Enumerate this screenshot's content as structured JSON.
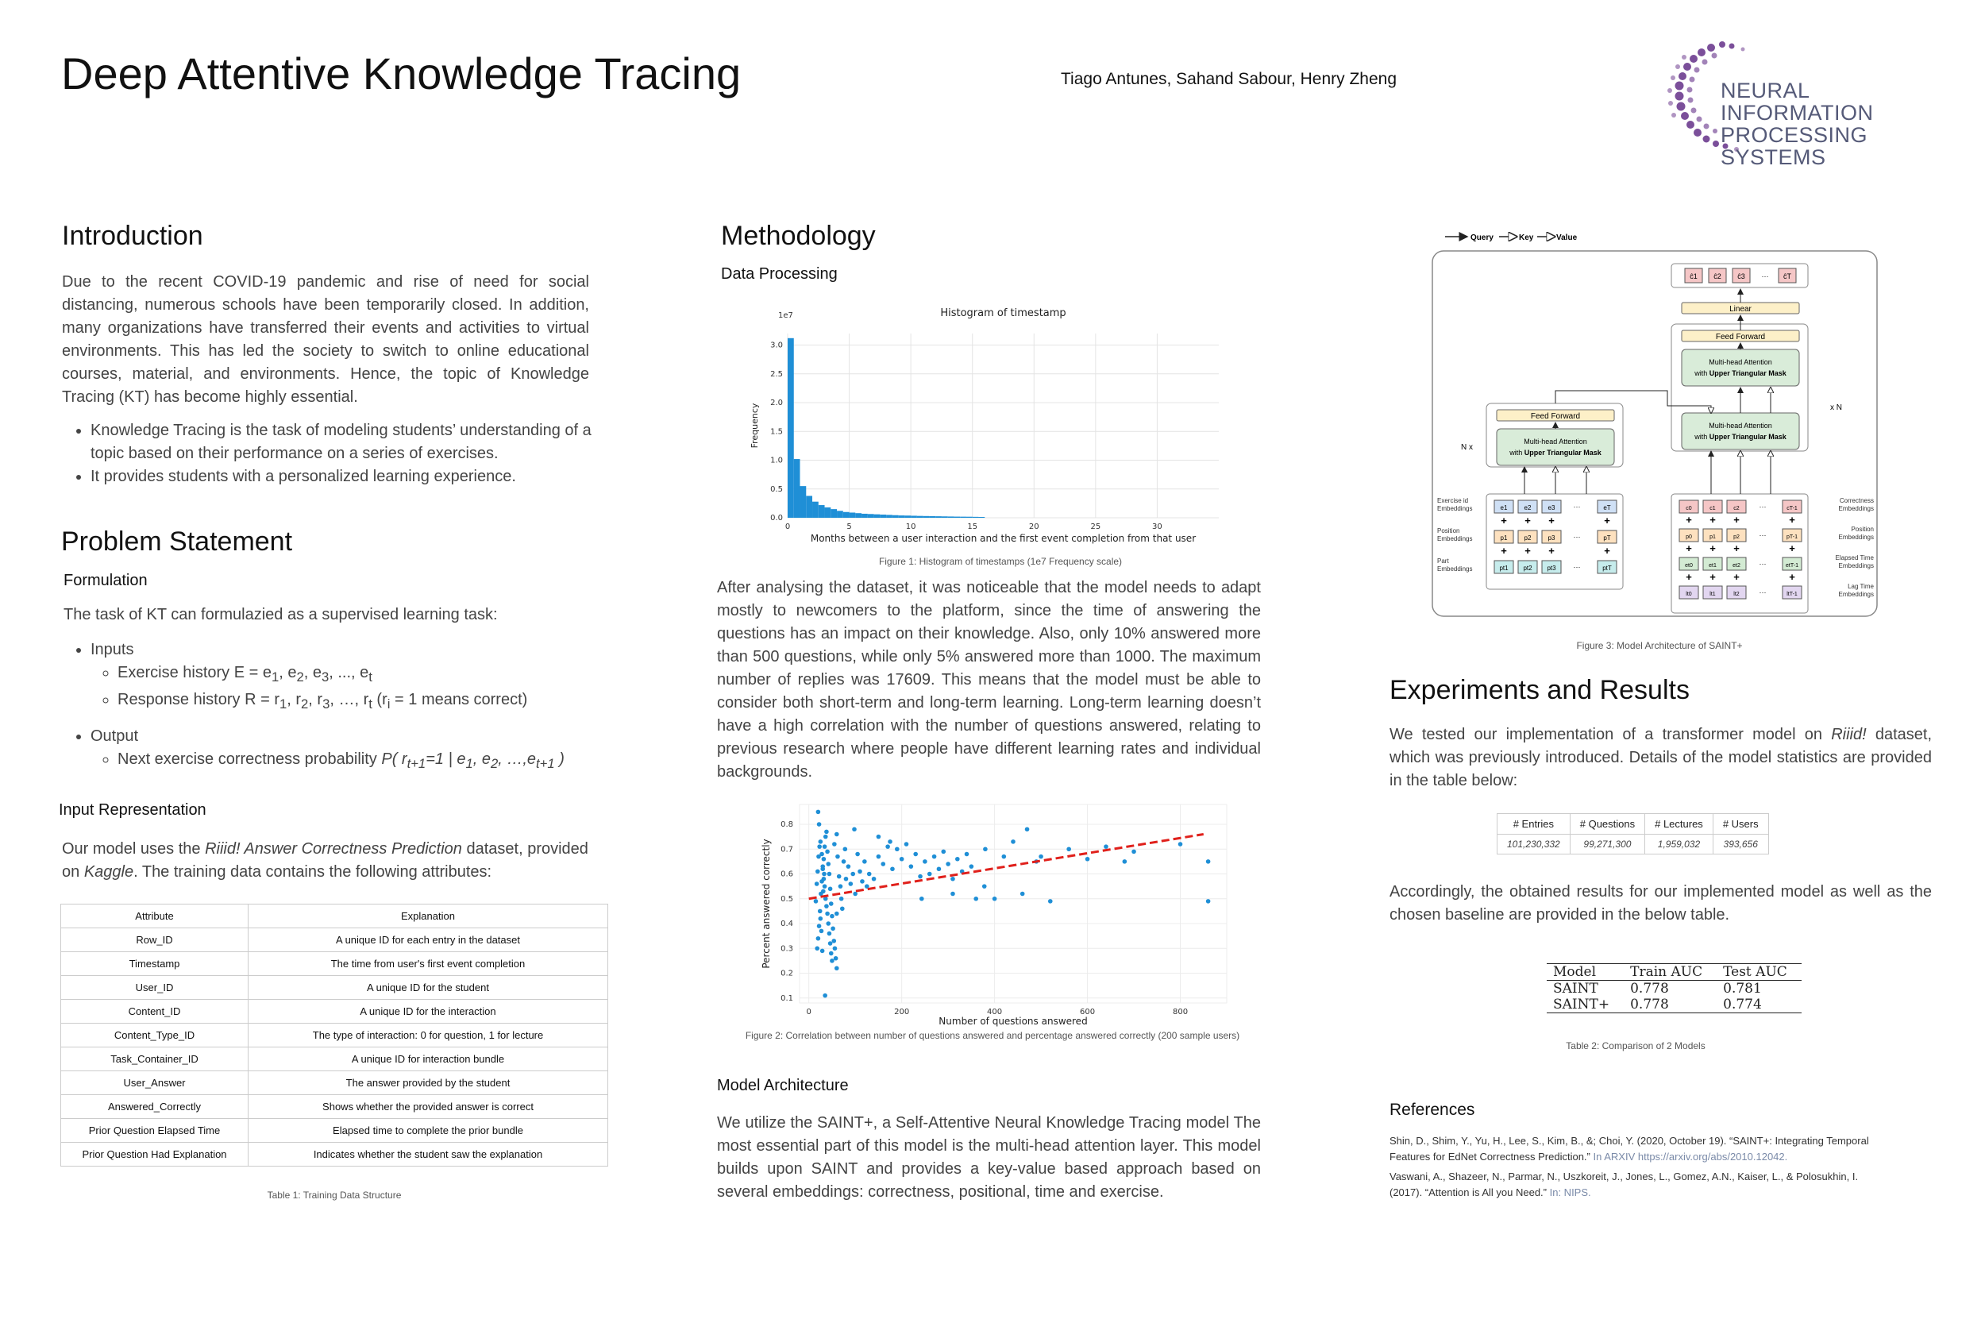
{
  "header": {
    "title": "Deep Attentive Knowledge Tracing",
    "authors": "Tiago Antunes, Sahand Sabour, Henry Zheng",
    "logo_line1": "NEURAL INFORMATION",
    "logo_line2": "PROCESSING SYSTEMS"
  },
  "intro": {
    "heading": "Introduction",
    "paragraph": "Due to the recent COVID-19 pandemic and rise of need for social distancing, numerous schools have been temporarily closed. In addition, many organizations have transferred their events and activities to virtual environments. This has led the society to switch to online educational courses, material, and environments. Hence, the topic of Knowledge Tracing (KT) has become highly essential.",
    "bullets": [
      "Knowledge Tracing is the task of modeling students’ understanding of a topic based on their performance on a series of exercises.",
      "It provides students with a personalized learning experience."
    ]
  },
  "problem": {
    "heading": "Problem Statement",
    "sub_formulation": "Formulation",
    "formulation_text": "The task of KT can formulazied as a supervised learning task:",
    "inputs_label": "Inputs",
    "exercise_history": "Exercise history E = e",
    "response_history": "Response history R = r",
    "response_note": " = 1 means correct)",
    "output_label": "Output",
    "next_prob": "Next exercise correctness probability",
    "sub_input_rep": "Input Representation",
    "input_rep_a": "Our model uses the ",
    "input_rep_dataset": "Riiid! Answer Correctness Prediction",
    "input_rep_b": " dataset, provided on ",
    "input_rep_kaggle": "Kaggle",
    "input_rep_c": ". The training data contains the following attributes:",
    "table_header": [
      "Attribute",
      "Explanation"
    ],
    "table_rows": [
      [
        "Row_ID",
        "A unique ID for each entry in the dataset"
      ],
      [
        "Timestamp",
        "The time from user's first event completion"
      ],
      [
        "User_ID",
        "A unique ID for the student"
      ],
      [
        "Content_ID",
        "A unique ID for the interaction"
      ],
      [
        "Content_Type_ID",
        "The type of interaction: 0 for question, 1 for lecture"
      ],
      [
        "Task_Container_ID",
        "A unique ID for interaction bundle"
      ],
      [
        "User_Answer",
        "The answer provided by the student"
      ],
      [
        "Answered_Correctly",
        "Shows whether the provided answer is correct"
      ],
      [
        "Prior Question Elapsed Time",
        "Elapsed time to complete the prior bundle"
      ],
      [
        "Prior Question Had Explanation",
        "Indicates  whether the student saw the explanation"
      ]
    ],
    "table_caption": "Table 1: Training Data Structure"
  },
  "method": {
    "heading": "Methodology",
    "sub_data": "Data Processing",
    "fig1_caption": "Figure 1: Histogram of timestamps (1e7 Frequency scale)",
    "paragraph": "After analysing the dataset, it was noticeable that the model needs to adapt mostly to newcomers to the platform, since the time of answering the questions has an impact on their knowledge. Also, only 10% answered more than 500 questions, while only 5% answered more than 1000. The maximum number of replies was 17609. This means that the model must be able to consider both short-term and long-term learning. Long-term learning doesn’t have a high correlation with the number of questions answered, relating to previous research where people have different learning rates and individual backgrounds.",
    "fig2_caption": "Figure 2:  Correlation between number of questions answered and percentage answered correctly (200 sample users)",
    "sub_arch": "Model Architecture",
    "arch_text": "We utilize the SAINT+, a Self-Attentive Neural Knowledge Tracing model The most essential part of this model is the multi-head attention layer. This model builds upon SAINT and provides a key-value based approach based on several embeddings: correctness, positional, time and exercise."
  },
  "chart_data": [
    {
      "type": "bar",
      "title": "Histogram of timestamp",
      "xlabel": "Months between a user interaction and the first event completion from that user",
      "ylabel": "Frequency",
      "y_scale_label": "1e7",
      "xlim": [
        0,
        35
      ],
      "ylim": [
        0,
        3.2
      ],
      "xticks": [
        0,
        5,
        10,
        15,
        20,
        25,
        30
      ],
      "yticks": [
        0.0,
        0.5,
        1.0,
        1.5,
        2.0,
        2.5,
        3.0
      ],
      "bin_width": 0.5,
      "values": [
        3.12,
        1.02,
        0.55,
        0.38,
        0.28,
        0.22,
        0.18,
        0.15,
        0.12,
        0.1,
        0.09,
        0.08,
        0.07,
        0.065,
        0.06,
        0.055,
        0.05,
        0.045,
        0.04,
        0.038,
        0.035,
        0.032,
        0.03,
        0.028,
        0.026,
        0.024,
        0.022,
        0.02,
        0.019,
        0.018,
        0.016,
        0.014
      ]
    },
    {
      "type": "scatter",
      "xlabel": "Number of questions answered",
      "ylabel": "Percent answered correctly",
      "xlim": [
        -20,
        900
      ],
      "ylim": [
        0.08,
        0.88
      ],
      "xticks": [
        0,
        200,
        400,
        600,
        800
      ],
      "yticks": [
        0.1,
        0.2,
        0.3,
        0.4,
        0.5,
        0.6,
        0.7,
        0.8
      ],
      "trend": {
        "x": [
          0,
          850
        ],
        "y": [
          0.5,
          0.76
        ],
        "color": "#e0201b"
      },
      "points": [
        [
          20,
          0.85
        ],
        [
          22,
          0.8
        ],
        [
          25,
          0.73
        ],
        [
          28,
          0.68
        ],
        [
          30,
          0.62
        ],
        [
          32,
          0.58
        ],
        [
          34,
          0.55
        ],
        [
          36,
          0.5
        ],
        [
          38,
          0.47
        ],
        [
          40,
          0.44
        ],
        [
          42,
          0.4
        ],
        [
          44,
          0.36
        ],
        [
          46,
          0.32
        ],
        [
          48,
          0.28
        ],
        [
          50,
          0.25
        ],
        [
          35,
          0.11
        ],
        [
          18,
          0.3
        ],
        [
          20,
          0.34
        ],
        [
          22,
          0.39
        ],
        [
          24,
          0.45
        ],
        [
          26,
          0.52
        ],
        [
          28,
          0.57
        ],
        [
          30,
          0.63
        ],
        [
          32,
          0.66
        ],
        [
          34,
          0.71
        ],
        [
          36,
          0.75
        ],
        [
          38,
          0.77
        ],
        [
          40,
          0.69
        ],
        [
          42,
          0.64
        ],
        [
          44,
          0.6
        ],
        [
          46,
          0.54
        ],
        [
          48,
          0.48
        ],
        [
          50,
          0.43
        ],
        [
          52,
          0.38
        ],
        [
          54,
          0.33
        ],
        [
          56,
          0.3
        ],
        [
          58,
          0.26
        ],
        [
          60,
          0.22
        ],
        [
          15,
          0.49
        ],
        [
          17,
          0.56
        ],
        [
          19,
          0.61
        ],
        [
          21,
          0.67
        ],
        [
          23,
          0.71
        ],
        [
          25,
          0.42
        ],
        [
          27,
          0.37
        ],
        [
          29,
          0.29
        ],
        [
          31,
          0.53
        ],
        [
          33,
          0.6
        ],
        [
          55,
          0.72
        ],
        [
          60,
          0.76
        ],
        [
          62,
          0.67
        ],
        [
          65,
          0.59
        ],
        [
          68,
          0.55
        ],
        [
          70,
          0.5
        ],
        [
          72,
          0.46
        ],
        [
          75,
          0.65
        ],
        [
          78,
          0.7
        ],
        [
          80,
          0.58
        ],
        [
          85,
          0.63
        ],
        [
          90,
          0.56
        ],
        [
          95,
          0.6
        ],
        [
          100,
          0.52
        ],
        [
          105,
          0.68
        ],
        [
          110,
          0.61
        ],
        [
          115,
          0.57
        ],
        [
          120,
          0.65
        ],
        [
          125,
          0.55
        ],
        [
          130,
          0.6
        ],
        [
          140,
          0.58
        ],
        [
          150,
          0.67
        ],
        [
          160,
          0.64
        ],
        [
          170,
          0.71
        ],
        [
          180,
          0.62
        ],
        [
          190,
          0.7
        ],
        [
          200,
          0.66
        ],
        [
          210,
          0.72
        ],
        [
          220,
          0.63
        ],
        [
          230,
          0.68
        ],
        [
          240,
          0.59
        ],
        [
          250,
          0.65
        ],
        [
          260,
          0.6
        ],
        [
          270,
          0.67
        ],
        [
          280,
          0.62
        ],
        [
          290,
          0.69
        ],
        [
          300,
          0.64
        ],
        [
          310,
          0.58
        ],
        [
          320,
          0.66
        ],
        [
          330,
          0.61
        ],
        [
          340,
          0.68
        ],
        [
          350,
          0.63
        ],
        [
          360,
          0.5
        ],
        [
          380,
          0.7
        ],
        [
          400,
          0.5
        ],
        [
          420,
          0.67
        ],
        [
          440,
          0.73
        ],
        [
          460,
          0.52
        ],
        [
          470,
          0.78
        ],
        [
          490,
          0.65
        ],
        [
          500,
          0.67
        ],
        [
          520,
          0.49
        ],
        [
          560,
          0.7
        ],
        [
          600,
          0.66
        ],
        [
          640,
          0.71
        ],
        [
          680,
          0.65
        ],
        [
          700,
          0.69
        ],
        [
          800,
          0.72
        ],
        [
          860,
          0.49
        ],
        [
          860,
          0.65
        ],
        [
          98,
          0.78
        ],
        [
          150,
          0.75
        ],
        [
          175,
          0.73
        ],
        [
          243,
          0.5
        ],
        [
          310,
          0.52
        ],
        [
          378,
          0.55
        ],
        [
          60,
          0.44
        ]
      ],
      "point_color": "#1f8fd6"
    }
  ],
  "figure3": {
    "caption": "Figure 3: Model Architecture of SAINT+",
    "legend": [
      "Query",
      "Key",
      "Value"
    ],
    "out_tokens": [
      "ĉ1",
      "ĉ2",
      "ĉ3",
      "···",
      "ĉT"
    ],
    "linear": "Linear",
    "feed_forward": "Feed Forward",
    "mha_line1": "Multi-head Attention",
    "mha_line2a": "with ",
    "mha_line2b": "Upper Triangular Mask",
    "nx": "N x",
    "xn": "x N",
    "left_labels": [
      "Exercise id Embeddings",
      "Position Embeddings",
      "Part Embeddings"
    ],
    "right_labels": [
      "Correctness Embeddings",
      "Position Embeddings",
      "Elapsed Time Embeddings",
      "Lag Time Embeddings"
    ],
    "enc_rows": [
      [
        "e1",
        "e2",
        "e3",
        "eT"
      ],
      [
        "p1",
        "p2",
        "p3",
        "pT"
      ],
      [
        "pt1",
        "pt2",
        "pt3",
        "ptT"
      ]
    ],
    "dec_rows": [
      [
        "c0",
        "c1",
        "c2",
        "cT-1"
      ],
      [
        "p0",
        "p1",
        "p2",
        "pT-1"
      ],
      [
        "et0",
        "et1",
        "et2",
        "etT-1"
      ],
      [
        "lt0",
        "lt1",
        "lt2",
        "ltT-1"
      ]
    ]
  },
  "experiments": {
    "heading": "Experiments and Results",
    "p1a": "We tested our implementation of a transformer model on ",
    "p1_dataset": "Riiid!",
    "p1b": " dataset, which was previously introduced. Details of the model statistics are provided in the table below:",
    "stats_header": [
      "# Entries",
      "# Questions",
      "# Lectures",
      "# Users"
    ],
    "stats_values": [
      "101,230,332",
      "99,271,300",
      "1,959,032",
      "393,656"
    ],
    "p2": "Accordingly, the obtained results for our implemented model as well as the chosen baseline are provided in the below table.",
    "auc_header": [
      "Model",
      "Train AUC",
      "Test AUC"
    ],
    "auc_rows": [
      [
        "SAINT",
        "0.778",
        "0.781"
      ],
      [
        "SAINT+",
        "0.778",
        "0.774"
      ]
    ],
    "table2_caption": "Table 2:  Comparison of 2 Models"
  },
  "references": {
    "heading": "References",
    "ref1": "Shin, D., Shim, Y., Yu, H., Lee, S., Kim, B., &; Choi, Y. (2020, October 19). “SAINT+: Integrating Temporal Features for EdNet Correctness Prediction.”",
    "ref1_link": " In ARXIV https://arxiv.org/abs/2010.12042.",
    "ref2": "Vaswani, A., Shazeer, N., Parmar, N., Uszkoreit, J., Jones, L., Gomez, A.N., Kaiser, L., & Polosukhin, I. (2017). “Attention is All you Need.”",
    "ref2_link": " In: NIPS."
  },
  "colors": {
    "histogram_bar": "#1f8fd6",
    "scatter_point": "#1f8fd6",
    "trend_line": "#e0201b",
    "logo_purple": "#7b4f9a",
    "logo_text": "#555a78"
  }
}
